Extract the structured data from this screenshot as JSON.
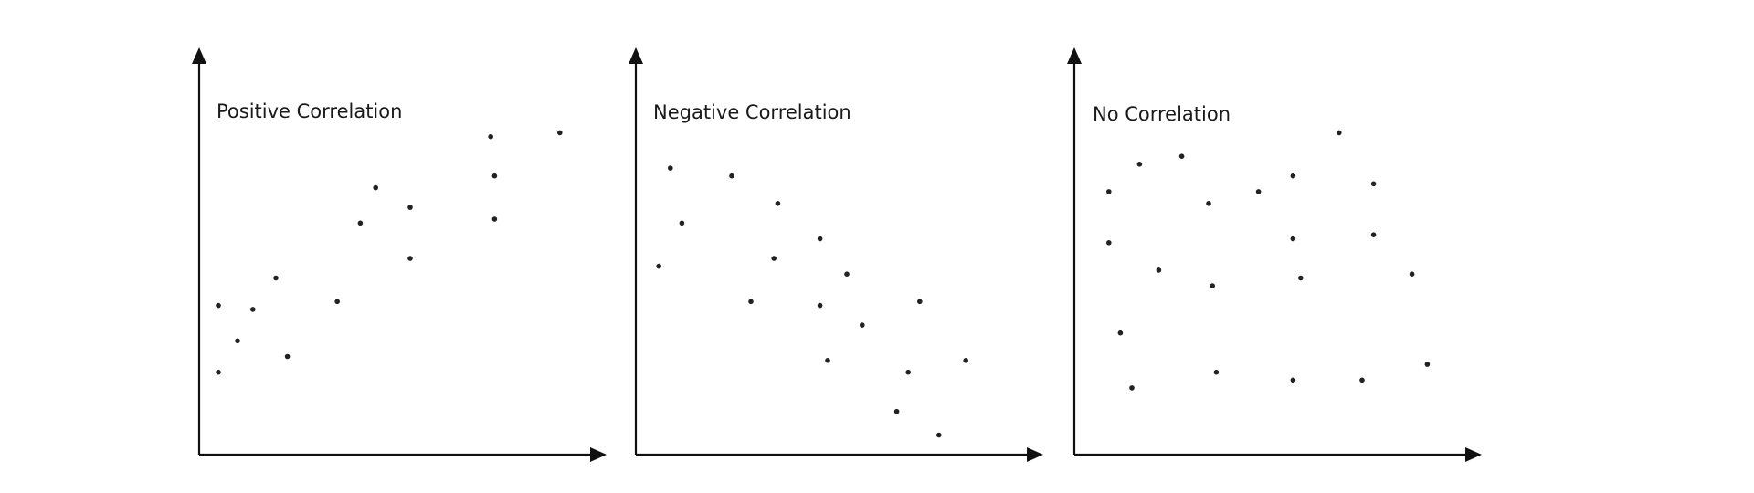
{
  "chart_data": [
    {
      "type": "scatter",
      "title": "Positive Correlation",
      "xlabel": "",
      "ylabel": "",
      "xlim": [
        0,
        10
      ],
      "ylim": [
        0,
        10
      ],
      "grid": false,
      "points": [
        {
          "x": 0.5,
          "y": 3.8
        },
        {
          "x": 0.5,
          "y": 2.1
        },
        {
          "x": 1.0,
          "y": 2.9
        },
        {
          "x": 1.4,
          "y": 3.7
        },
        {
          "x": 2.0,
          "y": 4.5
        },
        {
          "x": 2.3,
          "y": 2.5
        },
        {
          "x": 3.6,
          "y": 3.9
        },
        {
          "x": 4.2,
          "y": 5.9
        },
        {
          "x": 4.6,
          "y": 6.8
        },
        {
          "x": 5.5,
          "y": 6.3
        },
        {
          "x": 5.5,
          "y": 5.0
        },
        {
          "x": 7.6,
          "y": 8.1
        },
        {
          "x": 7.7,
          "y": 7.1
        },
        {
          "x": 7.7,
          "y": 6.0
        },
        {
          "x": 9.4,
          "y": 8.2
        }
      ]
    },
    {
      "type": "scatter",
      "title": "Negative Correlation",
      "xlabel": "",
      "ylabel": "",
      "xlim": [
        0,
        10
      ],
      "ylim": [
        0,
        10
      ],
      "grid": false,
      "points": [
        {
          "x": 0.9,
          "y": 7.3
        },
        {
          "x": 1.2,
          "y": 5.9
        },
        {
          "x": 0.6,
          "y": 4.8
        },
        {
          "x": 2.5,
          "y": 7.1
        },
        {
          "x": 3.0,
          "y": 3.9
        },
        {
          "x": 3.7,
          "y": 6.4
        },
        {
          "x": 3.6,
          "y": 5.0
        },
        {
          "x": 4.8,
          "y": 5.5
        },
        {
          "x": 4.8,
          "y": 3.8
        },
        {
          "x": 5.0,
          "y": 2.4
        },
        {
          "x": 5.5,
          "y": 4.6
        },
        {
          "x": 5.9,
          "y": 3.3
        },
        {
          "x": 6.8,
          "y": 1.1
        },
        {
          "x": 7.1,
          "y": 2.1
        },
        {
          "x": 7.4,
          "y": 3.9
        },
        {
          "x": 7.9,
          "y": 0.5
        },
        {
          "x": 8.6,
          "y": 2.4
        }
      ]
    },
    {
      "type": "scatter",
      "title": "No Correlation",
      "xlabel": "",
      "ylabel": "",
      "xlim": [
        0,
        10
      ],
      "ylim": [
        0,
        10
      ],
      "grid": false,
      "points": [
        {
          "x": 0.9,
          "y": 6.7
        },
        {
          "x": 0.9,
          "y": 5.4
        },
        {
          "x": 1.2,
          "y": 3.1
        },
        {
          "x": 1.5,
          "y": 1.7
        },
        {
          "x": 1.7,
          "y": 7.4
        },
        {
          "x": 2.2,
          "y": 4.7
        },
        {
          "x": 2.8,
          "y": 7.6
        },
        {
          "x": 3.5,
          "y": 6.4
        },
        {
          "x": 3.6,
          "y": 4.3
        },
        {
          "x": 3.7,
          "y": 2.1
        },
        {
          "x": 4.8,
          "y": 6.7
        },
        {
          "x": 5.7,
          "y": 7.1
        },
        {
          "x": 5.7,
          "y": 5.5
        },
        {
          "x": 5.7,
          "y": 1.9
        },
        {
          "x": 5.9,
          "y": 4.5
        },
        {
          "x": 6.9,
          "y": 8.2
        },
        {
          "x": 7.5,
          "y": 1.9
        },
        {
          "x": 7.8,
          "y": 6.9
        },
        {
          "x": 7.8,
          "y": 5.6
        },
        {
          "x": 8.8,
          "y": 4.6
        },
        {
          "x": 9.2,
          "y": 2.3
        }
      ]
    }
  ]
}
